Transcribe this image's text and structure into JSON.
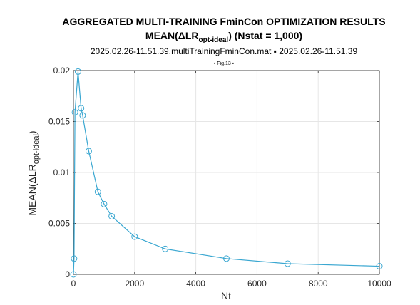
{
  "chart_data": {
    "type": "line",
    "title": "AGGREGATED MULTI-TRAINING FminCon OPTIMIZATION RESULTS",
    "title_line2": {
      "prefix": "MEAN(ΔLR",
      "subscript": "opt-ideal",
      "suffix": ") (Nstat = 1,000)"
    },
    "subtitle": "2025.02.26-11.51.39.multiTrainingFminCon.mat ▪ 2025.02.26-11.51.39",
    "figure_tag": "▪ Fig.13 ▪",
    "xlabel": "Nt",
    "ylabel": {
      "prefix": "MEAN(ΔLR",
      "subscript": "opt-ideal",
      "suffix": ")"
    },
    "xlim": [
      0,
      10000
    ],
    "ylim": [
      0,
      0.02
    ],
    "x_ticks": [
      0,
      2000,
      4000,
      6000,
      8000,
      10000
    ],
    "x_tick_labels": [
      "0",
      "2000",
      "4000",
      "6000",
      "8000",
      "10000"
    ],
    "y_ticks": [
      0,
      0.005,
      0.01,
      0.015,
      0.02
    ],
    "y_tick_labels": [
      "0",
      "0.005",
      "0.01",
      "0.015",
      "0.02"
    ],
    "grid": true,
    "line_color": "#3aa7d1",
    "series": [
      {
        "marker": "circle",
        "x": [
          0,
          20,
          50,
          150,
          250,
          300,
          500,
          800,
          1000,
          1250,
          2000,
          3000,
          5000,
          7000,
          10000
        ],
        "y": [
          0.0,
          0.00155,
          0.0159,
          0.0199,
          0.0163,
          0.0156,
          0.0121,
          0.0081,
          0.0069,
          0.0057,
          0.0037,
          0.0025,
          0.00155,
          0.00105,
          0.0008
        ]
      }
    ]
  }
}
